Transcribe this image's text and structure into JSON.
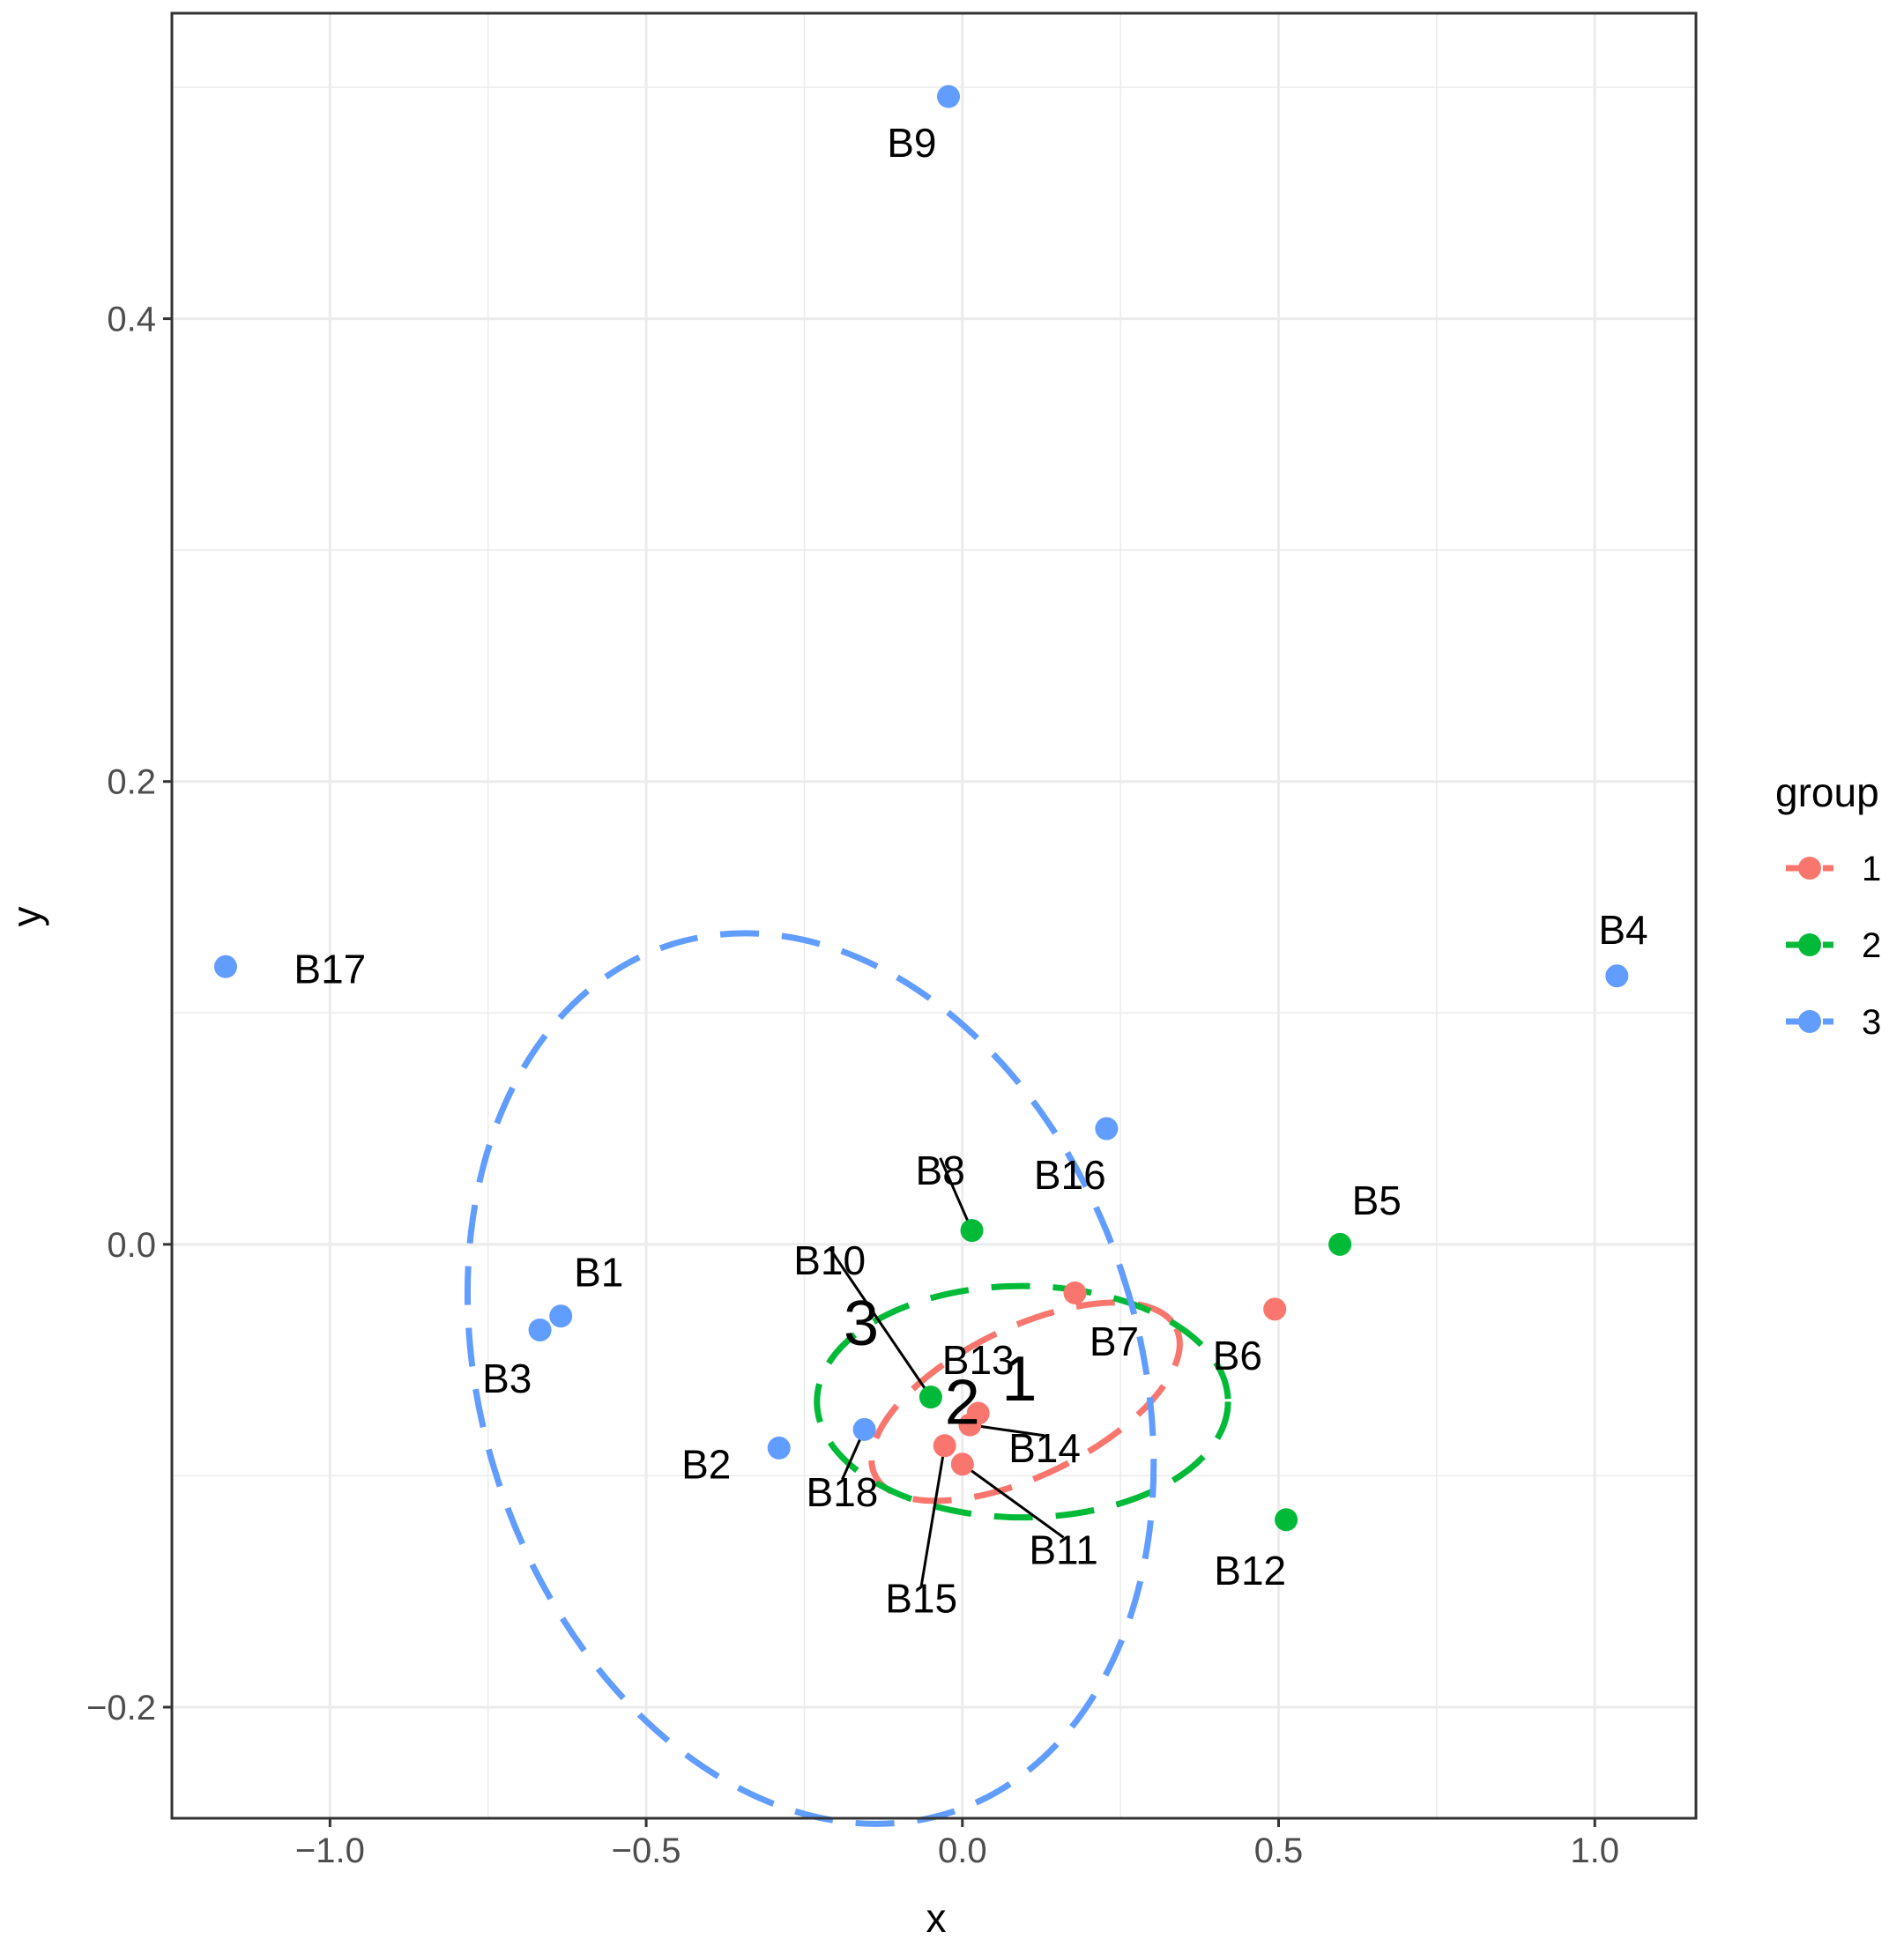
{
  "chart_data": {
    "type": "scatter",
    "xlabel": "x",
    "ylabel": "y",
    "xlim": [
      -1.25,
      1.16
    ],
    "ylim": [
      -0.248,
      0.532
    ],
    "xticks": [
      {
        "value": -1.0,
        "label": "−1.0"
      },
      {
        "value": -0.5,
        "label": "−0.5"
      },
      {
        "value": 0.0,
        "label": "0.0"
      },
      {
        "value": 0.5,
        "label": "0.5"
      },
      {
        "value": 1.0,
        "label": "1.0"
      }
    ],
    "yticks": [
      {
        "value": -0.2,
        "label": "−0.2"
      },
      {
        "value": 0.0,
        "label": "0.0"
      },
      {
        "value": 0.2,
        "label": "0.2"
      },
      {
        "value": 0.4,
        "label": "0.4"
      }
    ],
    "grid": true,
    "legend": {
      "title": "group",
      "position": "right",
      "entries": [
        {
          "label": "1",
          "color": "#F8766D"
        },
        {
          "label": "2",
          "color": "#00BA38"
        },
        {
          "label": "3",
          "color": "#619CFF"
        }
      ]
    },
    "points": [
      {
        "name": "B1",
        "group": "3",
        "x": -0.635,
        "y": -0.031,
        "label_x": -0.575,
        "label_y": -0.012
      },
      {
        "name": "B2",
        "group": "3",
        "x": -0.29,
        "y": -0.088,
        "label_x": -0.405,
        "label_y": -0.095
      },
      {
        "name": "B3",
        "group": "3",
        "x": -0.668,
        "y": -0.037,
        "label_x": -0.72,
        "label_y": -0.058
      },
      {
        "name": "B4",
        "group": "3",
        "x": 1.035,
        "y": 0.116,
        "label_x": 1.045,
        "label_y": 0.136
      },
      {
        "name": "B5",
        "group": "2",
        "x": 0.597,
        "y": 0.0,
        "label_x": 0.655,
        "label_y": 0.019
      },
      {
        "name": "B6",
        "group": "1",
        "x": 0.494,
        "y": -0.028,
        "label_x": 0.435,
        "label_y": -0.048
      },
      {
        "name": "B7",
        "group": "1",
        "x": 0.178,
        "y": -0.021,
        "label_x": 0.24,
        "label_y": -0.042
      },
      {
        "name": "B8",
        "group": "2",
        "x": 0.015,
        "y": 0.006,
        "label_x": -0.035,
        "label_y": 0.032,
        "leader": true
      },
      {
        "name": "B9",
        "group": "3",
        "x": -0.022,
        "y": 0.496,
        "label_x": -0.08,
        "label_y": 0.476
      },
      {
        "name": "B10",
        "group": "2",
        "x": -0.05,
        "y": -0.066,
        "label_x": -0.21,
        "label_y": -0.007,
        "leader": true
      },
      {
        "name": "B11",
        "group": "1",
        "x": 0.0,
        "y": -0.095,
        "label_x": 0.16,
        "label_y": -0.132,
        "leader": true
      },
      {
        "name": "B12",
        "group": "2",
        "x": 0.512,
        "y": -0.119,
        "label_x": 0.455,
        "label_y": -0.141
      },
      {
        "name": "B13",
        "group": "1",
        "x": 0.025,
        "y": -0.073,
        "label_x": 0.025,
        "label_y": -0.05
      },
      {
        "name": "B14",
        "group": "1",
        "x": 0.012,
        "y": -0.078,
        "label_x": 0.13,
        "label_y": -0.088,
        "leader": true
      },
      {
        "name": "B15",
        "group": "1",
        "x": -0.028,
        "y": -0.087,
        "label_x": -0.065,
        "label_y": -0.153,
        "leader": true
      },
      {
        "name": "B16",
        "group": "3",
        "x": 0.228,
        "y": 0.05,
        "label_x": 0.17,
        "label_y": 0.03
      },
      {
        "name": "B17",
        "group": "3",
        "x": -1.165,
        "y": 0.12,
        "label_x": -1.0,
        "label_y": 0.119
      },
      {
        "name": "B18",
        "group": "3",
        "x": -0.155,
        "y": -0.08,
        "label_x": -0.19,
        "label_y": -0.107,
        "leader": true
      }
    ],
    "ellipses": [
      {
        "group": "1",
        "cx": 0.1,
        "cy": -0.068,
        "rx": 0.265,
        "ry": 0.032,
        "angle_deg": 26
      },
      {
        "group": "2",
        "cx": 0.095,
        "cy": -0.068,
        "rx": 0.325,
        "ry": 0.05,
        "angle_deg": 0
      },
      {
        "group": "3",
        "cx": -0.24,
        "cy": -0.058,
        "rx": 0.52,
        "ry": 0.197,
        "angle_deg": 18
      }
    ],
    "centroid_labels": [
      {
        "label": "1",
        "x": 0.09,
        "y": -0.058
      },
      {
        "label": "2",
        "x": 0.0,
        "y": -0.068
      },
      {
        "label": "3",
        "x": -0.16,
        "y": -0.034
      }
    ]
  }
}
